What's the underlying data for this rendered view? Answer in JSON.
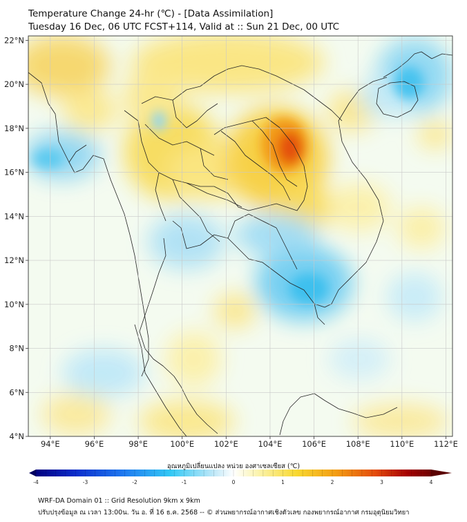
{
  "header": {
    "title_line1": "Temperature Change 24-hr (℃) - [Data Assimilation]",
    "title_line2": "Tuesday 16 Dec, 06 UTC FCST+114, Valid at :: Sun 21 Dec, 00 UTC"
  },
  "map": {
    "x_ticks": [
      {
        "lon": 94,
        "label": "94°E"
      },
      {
        "lon": 96,
        "label": "96°E"
      },
      {
        "lon": 98,
        "label": "98°E"
      },
      {
        "lon": 100,
        "label": "100°E"
      },
      {
        "lon": 102,
        "label": "102°E"
      },
      {
        "lon": 104,
        "label": "104°E"
      },
      {
        "lon": 106,
        "label": "106°E"
      },
      {
        "lon": 108,
        "label": "108°E"
      },
      {
        "lon": 110,
        "label": "110°E"
      },
      {
        "lon": 112,
        "label": "112°E"
      }
    ],
    "y_ticks": [
      {
        "lat": 22,
        "label": "22°N"
      },
      {
        "lat": 20,
        "label": "20°N"
      },
      {
        "lat": 18,
        "label": "18°N"
      },
      {
        "lat": 16,
        "label": "16°N"
      },
      {
        "lat": 14,
        "label": "14°N"
      },
      {
        "lat": 12,
        "label": "12°N"
      },
      {
        "lat": 10,
        "label": "10°N"
      },
      {
        "lat": 8,
        "label": "8°N"
      },
      {
        "lat": 6,
        "label": "6°N"
      },
      {
        "lat": 4,
        "label": "4°N"
      }
    ],
    "lon_range": [
      93,
      112.3
    ],
    "lat_range": [
      4,
      22.2
    ],
    "grid": true
  },
  "colorbar": {
    "label": "อุณหภูมิเปลี่ยนแปลง หน่วย องศาเซลเซียส (℃)",
    "ticks": [
      "-4",
      "-3",
      "-2",
      "-1",
      "0",
      "1",
      "2",
      "3",
      "4"
    ],
    "min": -4,
    "max": 4,
    "colors": [
      "#000080",
      "#0a2dcc",
      "#1e78f0",
      "#32c8f5",
      "#bfe8f8",
      "#ffffff",
      "#fbf4b0",
      "#f8d830",
      "#f39c12",
      "#e34a0a",
      "#a50000",
      "#6e0000"
    ]
  },
  "footer": {
    "line1": "WRF-DA Domain 01 :: Grid Resolution 9km x 9km",
    "line2": "ปรับปรุงข้อมูล ณ เวลา 13:00น. วัน อ. ที่ 16 ธ.ค. 2568 -- © ส่วนพยากรณ์อากาศเชิงตัวเลข กองพยากรณ์อากาศ กรมอุตุนิยมวิทยา"
  }
}
